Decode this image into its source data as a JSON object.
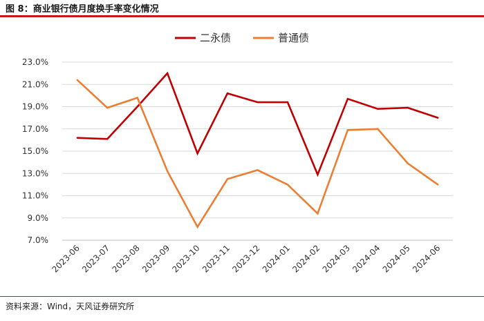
{
  "figure": {
    "title": "图 8：商业银行债月度换手率变化情况",
    "source": "资料来源：Wind，天风证券研究所"
  },
  "chart_data": {
    "type": "line",
    "categories": [
      "2023-06",
      "2023-07",
      "2023-08",
      "2023-09",
      "2023-10",
      "2023-11",
      "2023-12",
      "2024-01",
      "2024-02",
      "2024-03",
      "2024-04",
      "2024-05",
      "2024-06"
    ],
    "series": [
      {
        "name": "二永债",
        "color": "#c00000",
        "values": [
          16.2,
          16.1,
          19.0,
          22.0,
          14.8,
          20.2,
          19.4,
          19.4,
          12.9,
          19.7,
          18.8,
          18.9,
          18.0
        ]
      },
      {
        "name": "普通债",
        "color": "#ed7d31",
        "values": [
          21.4,
          18.9,
          19.8,
          13.2,
          8.2,
          12.5,
          13.3,
          12.0,
          9.4,
          16.9,
          17.0,
          13.9,
          12.0
        ]
      }
    ],
    "yticks": [
      "7.0%",
      "9.0%",
      "11.0%",
      "13.0%",
      "15.0%",
      "17.0%",
      "19.0%",
      "21.0%",
      "23.0%"
    ],
    "ylim": [
      7,
      23
    ],
    "legend_position": "top",
    "grid": "horizontal"
  }
}
